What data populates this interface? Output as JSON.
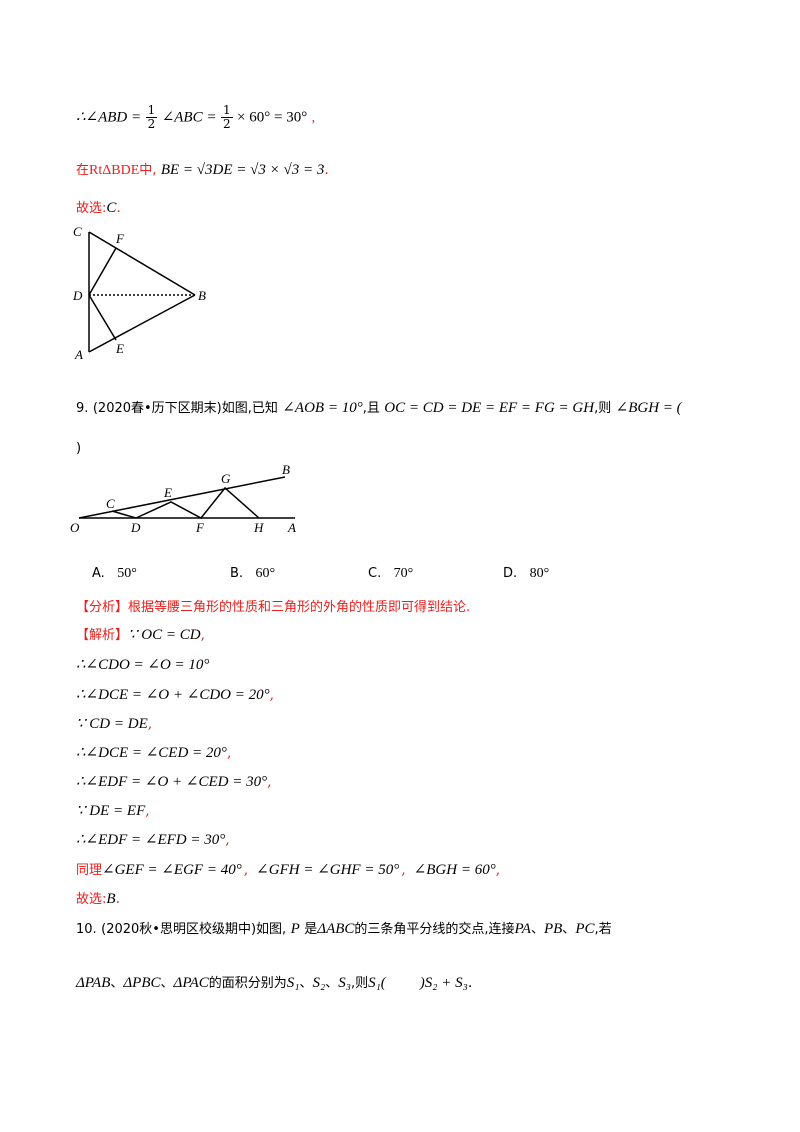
{
  "solution_prev": {
    "line1_prefix": "∴∠ABD =",
    "line1_frac1": {
      "num": "1",
      "den": "2"
    },
    "line1_mid": "∠ABC =",
    "line1_frac2": {
      "num": "1",
      "den": "2"
    },
    "line1_suffix": "× 60° = 30°",
    "line1_comma": ",",
    "line2_cn_a": "在",
    "line2_rt": "RtΔBDE",
    "line2_cn_b": "中,",
    "line2_math": "BE = √3DE = √3 × √3 = 3",
    "line2_end": ".",
    "answer_label": "故选:",
    "answer_value": "C",
    "answer_end": "."
  },
  "figure1": {
    "labels": {
      "C": "C",
      "F": "F",
      "D": "D",
      "B": "B",
      "A": "A",
      "E": "E"
    }
  },
  "q9": {
    "number": "9.",
    "source": "(2020春•历下区期末)如图,已知",
    "given1": "∠AOB = 10°",
    "mid": ",且",
    "given2": "OC = CD = DE = EF = FG = GH",
    "ask": ",则",
    "ask_math": "∠BGH = (",
    "close": ")",
    "figure_labels": {
      "O": "O",
      "C": "C",
      "D": "D",
      "E": "E",
      "F": "F",
      "G": "G",
      "H": "H",
      "A": "A",
      "B": "B"
    },
    "options": [
      {
        "label": "A.",
        "value": "50°"
      },
      {
        "label": "B.",
        "value": "60°"
      },
      {
        "label": "C.",
        "value": "70°"
      },
      {
        "label": "D.",
        "value": "80°"
      }
    ],
    "analysis_tag": "【分析】",
    "analysis_text": "根据等腰三角形的性质和三角形的外角的性质即可得到结论.",
    "solution_tag": "【解析】",
    "steps": [
      {
        "math": "∵ OC = CD",
        "end": ","
      },
      {
        "math": "∴∠CDO = ∠O = 10°",
        "end": ""
      },
      {
        "math": "∴∠DCE = ∠O + ∠CDO = 20°",
        "end": ","
      },
      {
        "math": "∵ CD = DE",
        "end": ","
      },
      {
        "math": "∴∠DCE = ∠CED = 20°",
        "end": ","
      },
      {
        "math": "∴∠EDF = ∠O + ∠CED = 30°",
        "end": ","
      },
      {
        "math": "∵ DE = EF",
        "end": ","
      },
      {
        "math": "∴∠EDF = ∠EFD = 30°",
        "end": ","
      }
    ],
    "similar_label": "同理",
    "similar_math1": "∠GEF = ∠EGF = 40°",
    "similar_sep1": ",",
    "similar_math2": "∠GFH = ∠GHF = 50°",
    "similar_sep2": ",",
    "similar_math3": "∠BGH = 60°",
    "similar_end": ",",
    "answer_label": "故选:",
    "answer_value": "B",
    "answer_end": "."
  },
  "q10": {
    "number": "10.",
    "source": "(2020秋•思明区校级期中)如图,",
    "p": "P",
    "t1": "是",
    "abc": "ΔABC",
    "t2": "的三条角平分线的交点,连接",
    "pa": "PA",
    "sep1": "、",
    "pb": "PB",
    "sep2": "、",
    "pc": "PC",
    "t3": ",若",
    "pab": "ΔPAB",
    "sep3": "、",
    "pbc": "ΔPBC",
    "sep4": "、",
    "pac": "ΔPAC",
    "t4": "的面积分别为",
    "s1": "S₁",
    "sep5": "、",
    "s2": "S₂",
    "sep6": "、",
    "s3": "S₃",
    "t5": ",则",
    "s1b": "S₁(",
    "blank": "    ",
    "tail": ")S₂ + S₃",
    "end": "."
  }
}
